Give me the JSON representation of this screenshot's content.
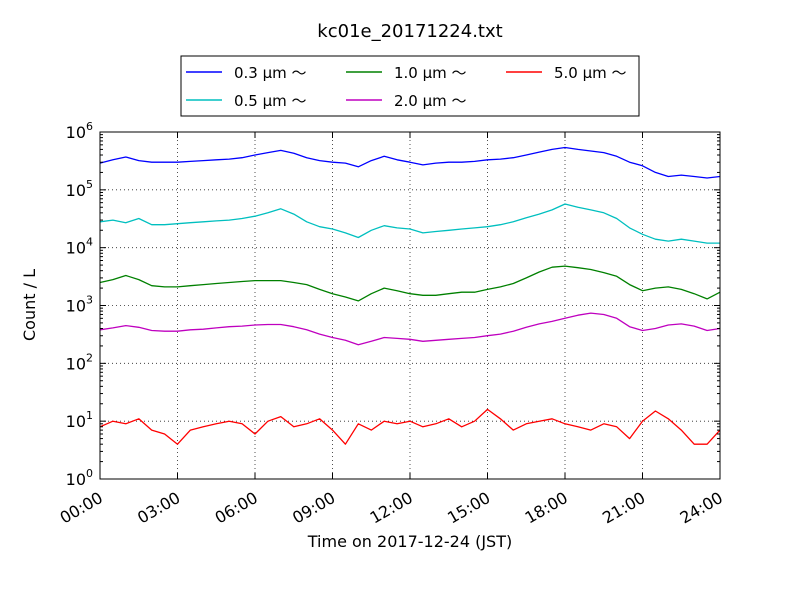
{
  "chart_data": {
    "type": "line",
    "title": "kc01e_20171224.txt",
    "xlabel": "Time on 2017-12-24 (JST)",
    "ylabel": "Count / L",
    "yscale": "log",
    "ylim": [
      1,
      1000000
    ],
    "xlim": [
      "2017-12-24 00:00",
      "2017-12-25 00:00"
    ],
    "x_ticks": [
      "00:00",
      "03:00",
      "06:00",
      "09:00",
      "12:00",
      "15:00",
      "18:00",
      "21:00",
      "24:00"
    ],
    "y_ticks": [
      1,
      10,
      100,
      1000,
      10000,
      100000,
      1000000
    ],
    "y_tick_labels": [
      {
        "base": "10",
        "exp": "0"
      },
      {
        "base": "10",
        "exp": "1"
      },
      {
        "base": "10",
        "exp": "2"
      },
      {
        "base": "10",
        "exp": "3"
      },
      {
        "base": "10",
        "exp": "4"
      },
      {
        "base": "10",
        "exp": "5"
      },
      {
        "base": "10",
        "exp": "6"
      }
    ],
    "grid": true,
    "legend": {
      "placement": "top",
      "ncol": 3
    },
    "x": [
      "00:00",
      "00:30",
      "01:00",
      "01:30",
      "02:00",
      "02:30",
      "03:00",
      "03:30",
      "04:00",
      "04:30",
      "05:00",
      "05:30",
      "06:00",
      "06:30",
      "07:00",
      "07:30",
      "08:00",
      "08:30",
      "09:00",
      "09:30",
      "10:00",
      "10:30",
      "11:00",
      "11:30",
      "12:00",
      "12:30",
      "13:00",
      "13:30",
      "14:00",
      "14:30",
      "15:00",
      "15:30",
      "16:00",
      "16:30",
      "17:00",
      "17:30",
      "18:00",
      "18:30",
      "19:00",
      "19:30",
      "20:00",
      "20:30",
      "21:00",
      "21:30",
      "22:00",
      "22:30",
      "23:00",
      "23:30",
      "24:00"
    ],
    "series": [
      {
        "name": "0.3 μm ～",
        "color": "#0000ff",
        "values": [
          290000,
          330000,
          370000,
          320000,
          300000,
          300000,
          300000,
          310000,
          320000,
          330000,
          340000,
          360000,
          400000,
          440000,
          480000,
          430000,
          360000,
          320000,
          300000,
          290000,
          250000,
          320000,
          380000,
          330000,
          300000,
          270000,
          290000,
          300000,
          300000,
          310000,
          330000,
          340000,
          360000,
          400000,
          450000,
          500000,
          540000,
          500000,
          470000,
          440000,
          380000,
          300000,
          260000,
          200000,
          170000,
          180000,
          170000,
          160000,
          170000
        ]
      },
      {
        "name": "0.5 μm ～",
        "color": "#00bfbf",
        "values": [
          28000,
          30000,
          27000,
          32000,
          25000,
          25000,
          26000,
          27000,
          28000,
          29000,
          30000,
          32000,
          35000,
          40000,
          47000,
          38000,
          28000,
          23000,
          21000,
          18000,
          15000,
          20000,
          24000,
          22000,
          21000,
          18000,
          19000,
          20000,
          21000,
          22000,
          23000,
          25000,
          28000,
          33000,
          38000,
          45000,
          57000,
          50000,
          45000,
          40000,
          32000,
          22000,
          17000,
          14000,
          13000,
          14000,
          13000,
          12000,
          12000
        ]
      },
      {
        "name": "1.0 μm ～",
        "color": "#008000",
        "values": [
          2500,
          2800,
          3300,
          2800,
          2200,
          2100,
          2100,
          2200,
          2300,
          2400,
          2500,
          2600,
          2700,
          2700,
          2700,
          2500,
          2300,
          1900,
          1600,
          1400,
          1200,
          1600,
          2000,
          1800,
          1600,
          1500,
          1500,
          1600,
          1700,
          1700,
          1900,
          2100,
          2400,
          3000,
          3800,
          4600,
          4800,
          4500,
          4200,
          3700,
          3200,
          2300,
          1800,
          2000,
          2100,
          1900,
          1600,
          1300,
          1700
        ]
      },
      {
        "name": "2.0 μm ～",
        "color": "#bf00bf",
        "values": [
          380,
          410,
          450,
          420,
          370,
          360,
          360,
          380,
          390,
          410,
          430,
          440,
          460,
          470,
          470,
          430,
          380,
          320,
          280,
          250,
          210,
          240,
          280,
          270,
          260,
          240,
          250,
          260,
          270,
          280,
          300,
          320,
          360,
          420,
          480,
          530,
          600,
          680,
          740,
          700,
          600,
          430,
          370,
          400,
          460,
          480,
          440,
          370,
          400
        ]
      },
      {
        "name": "5.0 μm ～",
        "color": "#ff0000",
        "values": [
          8,
          10,
          9,
          11,
          7,
          6,
          4,
          7,
          8,
          9,
          10,
          9,
          6,
          10,
          12,
          8,
          9,
          11,
          7,
          4,
          9,
          7,
          10,
          9,
          10,
          8,
          9,
          11,
          8,
          10,
          16,
          11,
          7,
          9,
          10,
          11,
          9,
          8,
          7,
          9,
          8,
          5,
          10,
          15,
          11,
          7,
          4,
          4,
          7
        ]
      }
    ]
  }
}
